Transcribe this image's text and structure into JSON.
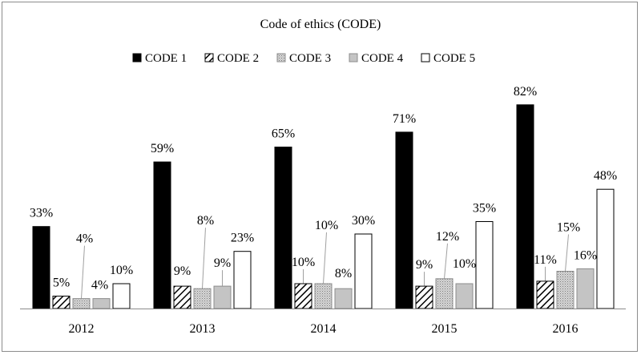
{
  "chart_data": {
    "type": "bar",
    "title": "Code of ethics (CODE)",
    "categories": [
      "2012",
      "2013",
      "2014",
      "2015",
      "2016"
    ],
    "series": [
      {
        "name": "CODE 1",
        "values": [
          33,
          59,
          65,
          71,
          82
        ],
        "labels": [
          "33%",
          "59%",
          "65%",
          "71%",
          "82%"
        ]
      },
      {
        "name": "CODE 2",
        "values": [
          5,
          9,
          10,
          9,
          11
        ],
        "labels": [
          "5%",
          "9%",
          "10%",
          "9%",
          "11%"
        ]
      },
      {
        "name": "CODE 3",
        "values": [
          4,
          8,
          10,
          12,
          15
        ],
        "labels": [
          "4%",
          "8%",
          "10%",
          "12%",
          "15%"
        ]
      },
      {
        "name": "CODE 4",
        "values": [
          4,
          9,
          8,
          10,
          16
        ],
        "labels": [
          "4%",
          "9%",
          "8%",
          "10%",
          "16%"
        ]
      },
      {
        "name": "CODE 5",
        "values": [
          10,
          23,
          30,
          35,
          48
        ],
        "labels": [
          "10%",
          "23%",
          "30%",
          "35%",
          "48%"
        ]
      }
    ],
    "ylim": [
      0,
      100
    ],
    "grid": false,
    "legend_position": "top",
    "colors": {
      "CODE 1": "#000000",
      "CODE 2": "hatch-diagonal",
      "CODE 3": "#c8c8c8",
      "CODE 4": "#c4c4c4",
      "CODE 5": "#ffffff"
    }
  }
}
